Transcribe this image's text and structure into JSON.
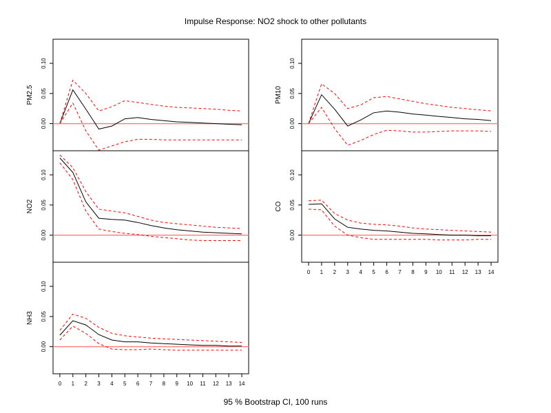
{
  "title": "Impulse Response: NO2 shock to other pollutants",
  "caption": "95 % Bootstrap CI,  100 runs",
  "colors": {
    "response": "#000000",
    "ci": "#ff0000",
    "zero_line": "#ff8080"
  },
  "chart_data": [
    {
      "type": "line",
      "ylabel": "PM2.5",
      "x": [
        0,
        1,
        2,
        3,
        4,
        5,
        6,
        7,
        8,
        9,
        10,
        11,
        12,
        13,
        14
      ],
      "ylim": [
        -0.045,
        0.14
      ],
      "yticks": [
        "0.00",
        "0.05",
        "0.10"
      ],
      "xticks": [],
      "series": [
        {
          "values": [
            0.0,
            0.056,
            0.024,
            -0.009,
            -0.004,
            0.008,
            0.01,
            0.007,
            0.005,
            0.003,
            0.002,
            0.001,
            0.0,
            -0.001,
            -0.002
          ]
        },
        {
          "values": [
            0.0,
            0.072,
            0.05,
            0.021,
            0.028,
            0.038,
            0.035,
            0.032,
            0.029,
            0.027,
            0.026,
            0.025,
            0.024,
            0.022,
            0.021
          ]
        },
        {
          "values": [
            0.0,
            0.034,
            -0.012,
            -0.044,
            -0.037,
            -0.03,
            -0.026,
            -0.026,
            -0.027,
            -0.027,
            -0.027,
            -0.027,
            -0.027,
            -0.027,
            -0.027
          ]
        }
      ]
    },
    {
      "type": "line",
      "ylabel": "PM10",
      "x": [
        0,
        1,
        2,
        3,
        4,
        5,
        6,
        7,
        8,
        9,
        10,
        11,
        12,
        13,
        14
      ],
      "ylim": [
        -0.045,
        0.14
      ],
      "yticks": [
        "0.00",
        "0.05",
        "0.10"
      ],
      "xticks": [],
      "series": [
        {
          "values": [
            0.0,
            0.048,
            0.024,
            -0.004,
            0.006,
            0.018,
            0.021,
            0.019,
            0.016,
            0.014,
            0.012,
            0.01,
            0.008,
            0.007,
            0.005
          ]
        },
        {
          "values": [
            0.0,
            0.066,
            0.05,
            0.025,
            0.031,
            0.043,
            0.045,
            0.041,
            0.037,
            0.033,
            0.03,
            0.027,
            0.025,
            0.023,
            0.021
          ]
        },
        {
          "values": [
            0.0,
            0.027,
            -0.008,
            -0.036,
            -0.028,
            -0.018,
            -0.011,
            -0.012,
            -0.014,
            -0.014,
            -0.013,
            -0.012,
            -0.012,
            -0.012,
            -0.013
          ]
        }
      ]
    },
    {
      "type": "line",
      "ylabel": "NO2",
      "x": [
        0,
        1,
        2,
        3,
        4,
        5,
        6,
        7,
        8,
        9,
        10,
        11,
        12,
        13,
        14
      ],
      "ylim": [
        -0.045,
        0.14
      ],
      "yticks": [
        "0.00",
        "0.05",
        "0.10"
      ],
      "xticks": [],
      "series": [
        {
          "values": [
            0.128,
            0.104,
            0.055,
            0.028,
            0.026,
            0.025,
            0.021,
            0.016,
            0.012,
            0.009,
            0.007,
            0.005,
            0.004,
            0.003,
            0.002
          ]
        },
        {
          "values": [
            0.133,
            0.112,
            0.072,
            0.043,
            0.04,
            0.037,
            0.031,
            0.025,
            0.021,
            0.019,
            0.017,
            0.015,
            0.013,
            0.012,
            0.011
          ]
        },
        {
          "values": [
            0.12,
            0.092,
            0.04,
            0.01,
            0.006,
            0.003,
            0.001,
            -0.002,
            -0.004,
            -0.006,
            -0.008,
            -0.009,
            -0.009,
            -0.009,
            -0.009
          ]
        }
      ]
    },
    {
      "type": "line",
      "ylabel": "CO",
      "x": [
        0,
        1,
        2,
        3,
        4,
        5,
        6,
        7,
        8,
        9,
        10,
        11,
        12,
        13,
        14
      ],
      "ylim": [
        -0.045,
        0.14
      ],
      "yticks": [
        "0.00",
        "0.05",
        "0.10"
      ],
      "xticks": [
        "0",
        "1",
        "2",
        "3",
        "4",
        "5",
        "6",
        "7",
        "8",
        "9",
        "10",
        "11",
        "12",
        "13",
        "14"
      ],
      "series": [
        {
          "values": [
            0.051,
            0.052,
            0.027,
            0.013,
            0.01,
            0.008,
            0.007,
            0.005,
            0.003,
            0.002,
            0.001,
            0.0,
            0.0,
            -0.001,
            -0.001
          ]
        },
        {
          "values": [
            0.057,
            0.058,
            0.036,
            0.025,
            0.02,
            0.018,
            0.017,
            0.015,
            0.012,
            0.01,
            0.009,
            0.008,
            0.007,
            0.006,
            0.005
          ]
        },
        {
          "values": [
            0.043,
            0.042,
            0.015,
            0.0,
            -0.004,
            -0.007,
            -0.007,
            -0.007,
            -0.007,
            -0.007,
            -0.008,
            -0.008,
            -0.008,
            -0.007,
            -0.007
          ]
        }
      ]
    },
    {
      "type": "line",
      "ylabel": "NH3",
      "x": [
        0,
        1,
        2,
        3,
        4,
        5,
        6,
        7,
        8,
        9,
        10,
        11,
        12,
        13,
        14
      ],
      "ylim": [
        -0.045,
        0.14
      ],
      "yticks": [
        "0.00",
        "0.05",
        "0.10"
      ],
      "xticks": [
        "0",
        "1",
        "2",
        "3",
        "4",
        "5",
        "6",
        "7",
        "8",
        "9",
        "10",
        "11",
        "12",
        "13",
        "14"
      ],
      "series": [
        {
          "values": [
            0.019,
            0.043,
            0.036,
            0.02,
            0.011,
            0.008,
            0.008,
            0.006,
            0.005,
            0.004,
            0.003,
            0.002,
            0.002,
            0.001,
            0.001
          ]
        },
        {
          "values": [
            0.027,
            0.054,
            0.047,
            0.032,
            0.022,
            0.018,
            0.016,
            0.014,
            0.013,
            0.012,
            0.011,
            0.01,
            0.009,
            0.008,
            0.007
          ]
        },
        {
          "values": [
            0.011,
            0.034,
            0.022,
            0.005,
            -0.004,
            -0.005,
            -0.005,
            -0.004,
            -0.005,
            -0.006,
            -0.006,
            -0.006,
            -0.006,
            -0.006,
            -0.006
          ]
        }
      ]
    }
  ]
}
